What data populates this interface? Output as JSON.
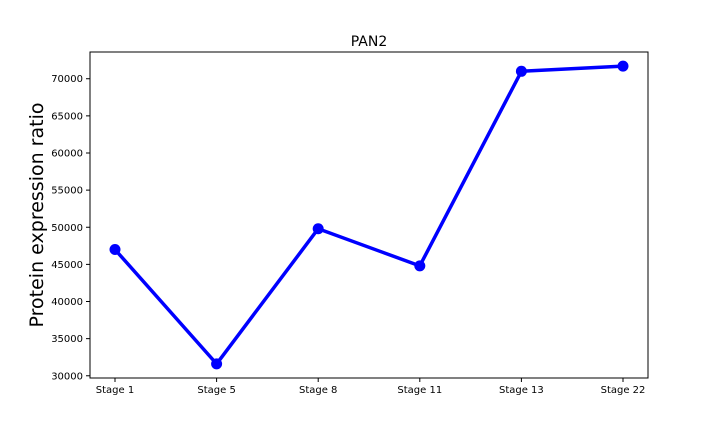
{
  "chart_data": {
    "type": "line",
    "title": "PAN2",
    "xlabel": "",
    "ylabel": "Protein expression ratio",
    "categories": [
      "Stage 1",
      "Stage 5",
      "Stage 8",
      "Stage 11",
      "Stage 13",
      "Stage 22"
    ],
    "series": [
      {
        "values": [
          47000,
          31600,
          49800,
          44800,
          71000,
          71700
        ],
        "color": "#0000ff",
        "marker": "circle"
      }
    ],
    "ylim": [
      29700,
      73600
    ],
    "yticks": [
      30000,
      35000,
      40000,
      45000,
      50000,
      55000,
      60000,
      65000,
      70000
    ],
    "grid": false,
    "legend": false
  }
}
